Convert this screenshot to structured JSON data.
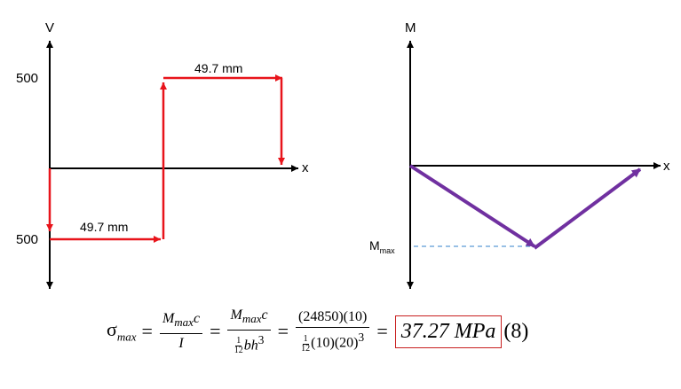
{
  "shear_diagram": {
    "axis_v_label": "V",
    "axis_x_label": "x",
    "tick_top": "500",
    "tick_bottom": "500",
    "dim_top": "49.7 mm",
    "dim_bottom": "49.7 mm",
    "shear_magnitude": 500,
    "segment_length_mm": 49.7
  },
  "moment_diagram": {
    "axis_m_label": "M",
    "axis_x_label": "x",
    "mmax_label": "M",
    "mmax_sub": "max"
  },
  "formula": {
    "sigma": "σ",
    "sigma_sub": "max",
    "eq": "=",
    "f1_num_m": "M",
    "f1_num_sub": "max",
    "f1_num_c": "c",
    "f1_den": "I",
    "f2_num_m": "M",
    "f2_num_sub": "max",
    "f2_num_c": "c",
    "f2_den_1": "1",
    "f2_den_12": "12",
    "f2_den_bh": "bh",
    "f2_den_exp": "3",
    "f3_num": "(24850)(10)",
    "f3_den_1": "1",
    "f3_den_12": "12",
    "f3_den_rest": "(10)(20)",
    "f3_den_exp": "3",
    "result": "37.27 MPa",
    "eq_number": "(8)"
  },
  "colors": {
    "shear": "#e8141b",
    "moment": "#7030a0",
    "dashed": "#5b9bd5",
    "highlight_box": "#c81e1e"
  }
}
